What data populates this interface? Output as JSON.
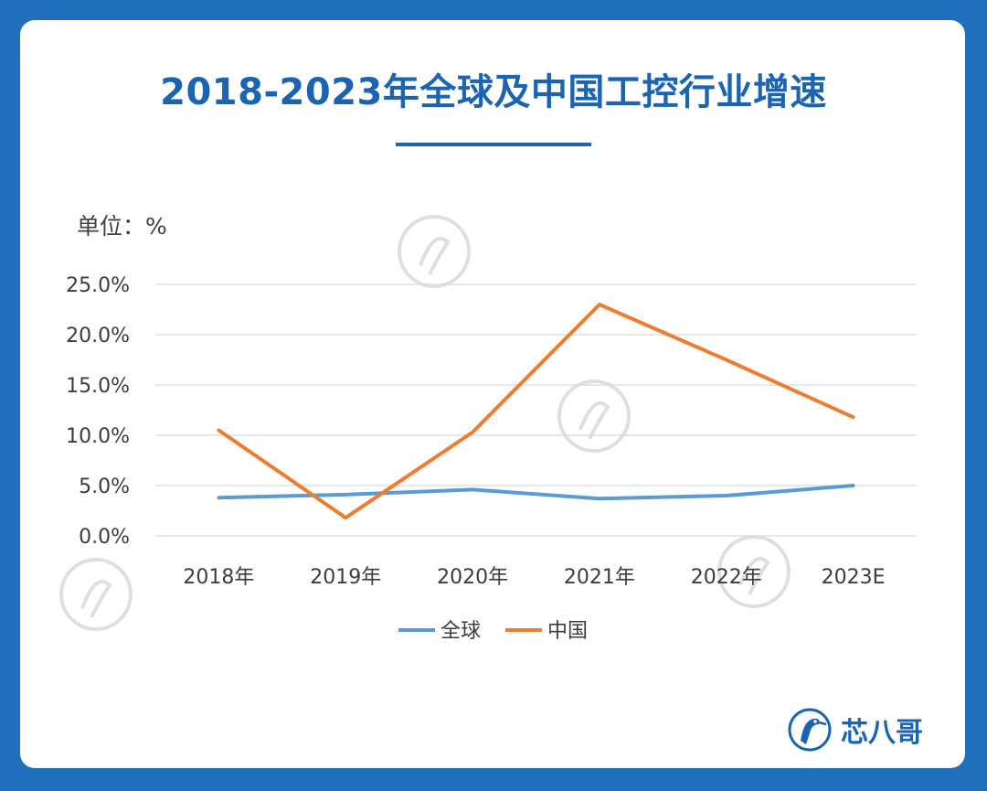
{
  "chart_data": {
    "type": "line",
    "title": "2018-2023年全球及中国工控行业增速",
    "unit_label": "单位：%",
    "categories": [
      "2018年",
      "2019年",
      "2020年",
      "2021年",
      "2022年",
      "2023E"
    ],
    "y_ticks": [
      "0.0%",
      "5.0%",
      "10.0%",
      "15.0%",
      "20.0%",
      "25.0%"
    ],
    "ylim": [
      0,
      25
    ],
    "grid": true,
    "legend_position": "bottom",
    "series": [
      {
        "name": "全球",
        "color": "#5b9bd5",
        "values": [
          3.8,
          4.1,
          4.6,
          3.7,
          4.0,
          5.0
        ]
      },
      {
        "name": "中国",
        "color": "#ed7d31",
        "values": [
          10.5,
          1.8,
          10.3,
          23.0,
          17.5,
          11.8
        ]
      }
    ]
  },
  "brand": {
    "name": "芯八哥",
    "color": "#1b64b2"
  },
  "watermark_text": "芯八哥"
}
